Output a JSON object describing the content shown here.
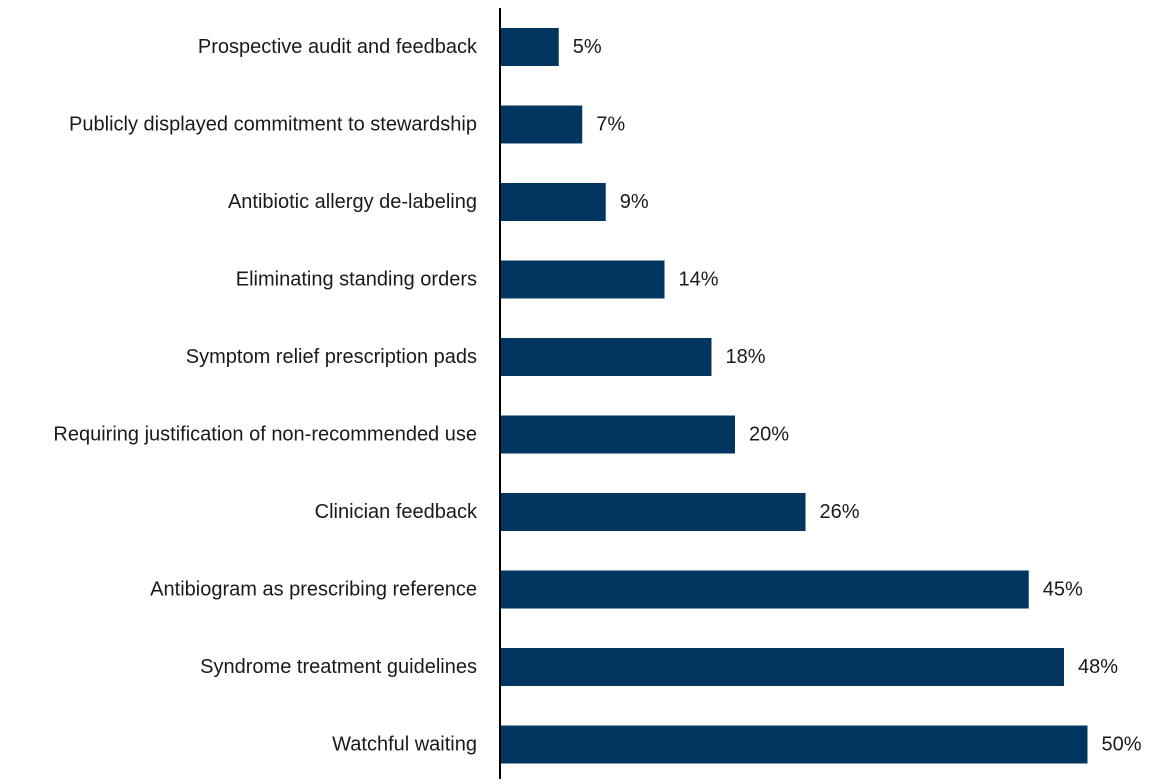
{
  "chart_data": {
    "type": "bar",
    "orientation": "horizontal",
    "categories": [
      "Prospective audit and feedback",
      "Publicly displayed commitment to stewardship",
      "Antibiotic allergy de-labeling",
      "Eliminating standing orders",
      "Symptom relief prescription pads",
      "Requiring justification of non-recommended use",
      "Clinician feedback",
      "Antibiogram as prescribing reference",
      "Syndrome treatment guidelines",
      "Watchful waiting"
    ],
    "values": [
      5,
      7,
      9,
      14,
      18,
      20,
      26,
      45,
      48,
      50
    ],
    "value_labels": [
      "5%",
      "7%",
      "9%",
      "14%",
      "18%",
      "20%",
      "26%",
      "45%",
      "48%",
      "50%"
    ],
    "unit": "%",
    "xlim": [
      0,
      52
    ],
    "bar_color": "#003660",
    "title": "",
    "xlabel": "",
    "ylabel": "",
    "grid": false,
    "legend": "none"
  }
}
